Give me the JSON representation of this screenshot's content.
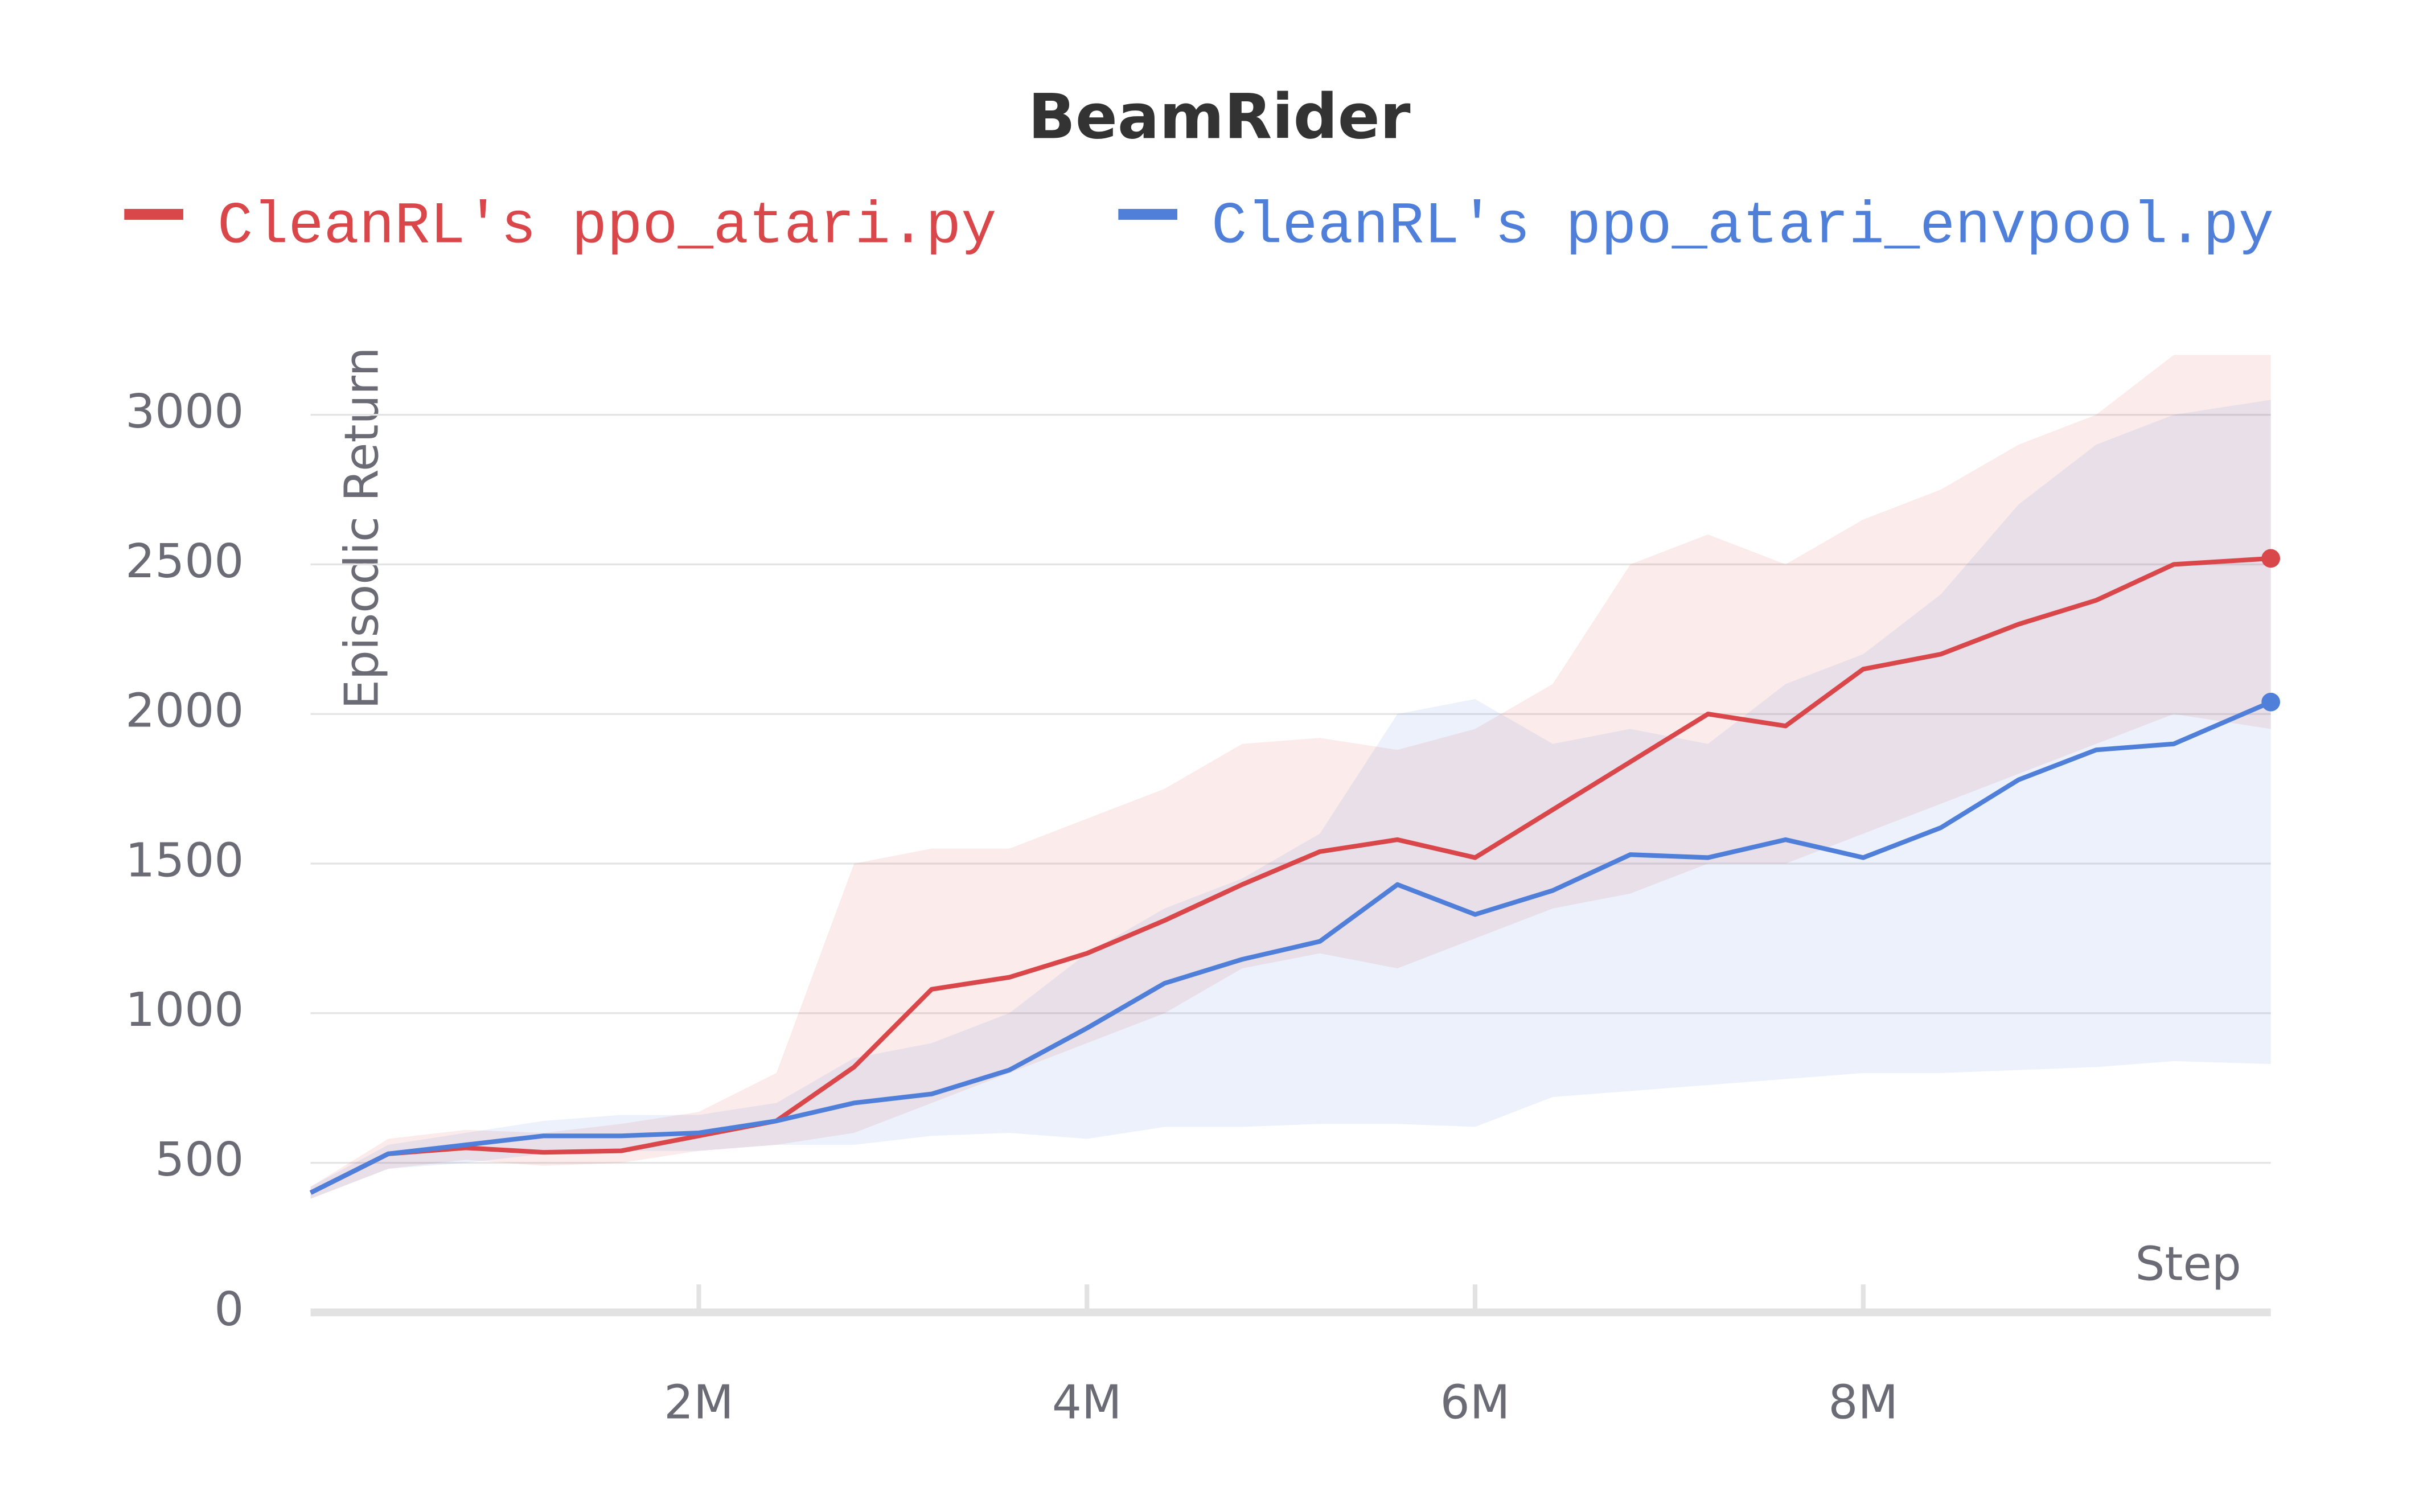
{
  "chart_data": {
    "type": "line",
    "title": "BeamRider",
    "x_label": "Step",
    "y_label": "Episodic Return",
    "x": [
      0,
      400000,
      800000,
      1200000,
      1600000,
      2000000,
      2400000,
      2800000,
      3200000,
      3600000,
      4000000,
      4400000,
      4800000,
      5200000,
      5600000,
      6000000,
      6400000,
      6800000,
      7200000,
      7600000,
      8000000,
      8400000,
      8800000,
      9200000,
      9600000,
      10100000
    ],
    "series": [
      {
        "name": "CleanRL's ppo_atari.py",
        "color": "#d9474a",
        "values": [
          400,
          530,
          550,
          535,
          540,
          590,
          640,
          820,
          1080,
          1120,
          1200,
          1310,
          1430,
          1540,
          1580,
          1520,
          1680,
          1840,
          2000,
          1960,
          2150,
          2200,
          2300,
          2380,
          2500,
          2520
        ],
        "upper": [
          420,
          580,
          610,
          600,
          630,
          670,
          800,
          1500,
          1550,
          1550,
          1650,
          1750,
          1900,
          1920,
          1880,
          1950,
          2100,
          2500,
          2600,
          2500,
          2650,
          2750,
          2900,
          3000,
          3200,
          3200
        ],
        "lower": [
          380,
          480,
          510,
          490,
          500,
          540,
          560,
          600,
          700,
          800,
          900,
          1000,
          1150,
          1200,
          1150,
          1250,
          1350,
          1400,
          1500,
          1500,
          1600,
          1700,
          1800,
          1900,
          2000,
          1950
        ]
      },
      {
        "name": "CleanRL's ppo_atari_envpool.py",
        "color": "#4f7fd8",
        "values": [
          400,
          530,
          560,
          590,
          590,
          600,
          640,
          700,
          730,
          810,
          950,
          1100,
          1180,
          1240,
          1430,
          1330,
          1410,
          1530,
          1520,
          1580,
          1520,
          1620,
          1780,
          1880,
          1900,
          2040
        ],
        "upper": [
          420,
          560,
          600,
          640,
          660,
          660,
          700,
          850,
          900,
          1000,
          1200,
          1350,
          1450,
          1600,
          2000,
          2050,
          1900,
          1950,
          1900,
          2100,
          2200,
          2400,
          2700,
          2900,
          3000,
          3050
        ],
        "lower": [
          380,
          480,
          500,
          530,
          540,
          540,
          560,
          560,
          590,
          600,
          580,
          620,
          620,
          630,
          630,
          620,
          720,
          740,
          760,
          780,
          800,
          800,
          810,
          820,
          840,
          830
        ]
      }
    ],
    "xlim": [
      0,
      10100000
    ],
    "xticks": [
      {
        "value": 2000000,
        "label": "2M"
      },
      {
        "value": 4000000,
        "label": "4M"
      },
      {
        "value": 6000000,
        "label": "6M"
      },
      {
        "value": 8000000,
        "label": "8M"
      }
    ],
    "ylim": [
      0,
      3400
    ],
    "yticks": [
      0,
      500,
      1000,
      1500,
      2000,
      2500,
      3000
    ],
    "grid": true
  }
}
